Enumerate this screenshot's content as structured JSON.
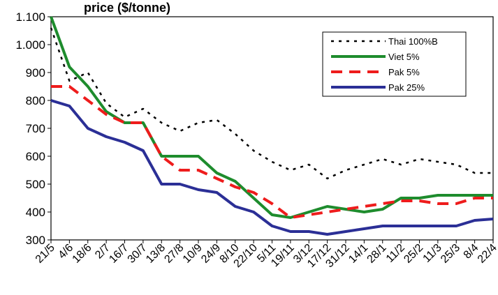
{
  "chart_data": {
    "type": "line",
    "title": "price ($/tonne)",
    "xlabel": "",
    "ylabel": "",
    "ylim": [
      300,
      1100
    ],
    "yticks": [
      "1.100",
      "1.000",
      "900",
      "800",
      "700",
      "600",
      "500",
      "400",
      "300"
    ],
    "grid": false,
    "legend_position": "top-right",
    "x_tick_labels": [
      "21/5",
      "4/6",
      "18/6",
      "2/7",
      "16/7",
      "30/7",
      "13/8",
      "27/8",
      "10/9",
      "24/9",
      "8/10",
      "22/10",
      "5/11",
      "19/11",
      "3/12",
      "17/12",
      "31/12",
      "14/1",
      "28/1",
      "11/2",
      "25/2",
      "11/3",
      "25/3",
      "8/4",
      "22/4"
    ],
    "series": [
      {
        "name": "Thai 100%B",
        "color": "#000000",
        "style": "dotted",
        "values": [
          1060,
          870,
          900,
          790,
          740,
          770,
          720,
          690,
          720,
          730,
          680,
          620,
          580,
          550,
          570,
          520,
          550,
          570,
          590,
          570,
          590,
          580,
          570,
          540,
          540
        ]
      },
      {
        "name": "Viet 5%",
        "color": "#1e8c2d",
        "style": "solid",
        "values": [
          1100,
          920,
          850,
          760,
          720,
          720,
          600,
          600,
          600,
          540,
          510,
          450,
          390,
          380,
          400,
          420,
          410,
          400,
          410,
          450,
          450,
          460,
          460,
          460,
          460
        ]
      },
      {
        "name": "Pak 5%",
        "color": "#ee1c1c",
        "style": "dashed",
        "values": [
          850,
          850,
          800,
          750,
          720,
          720,
          600,
          550,
          550,
          520,
          490,
          470,
          430,
          380,
          390,
          400,
          410,
          420,
          430,
          440,
          440,
          430,
          430,
          450,
          450
        ]
      },
      {
        "name": "Pak 25%",
        "color": "#2b2f96",
        "style": "solid",
        "values": [
          800,
          780,
          700,
          670,
          650,
          620,
          500,
          500,
          480,
          470,
          420,
          400,
          350,
          330,
          330,
          320,
          330,
          340,
          350,
          350,
          350,
          350,
          350,
          370,
          375
        ]
      }
    ]
  }
}
